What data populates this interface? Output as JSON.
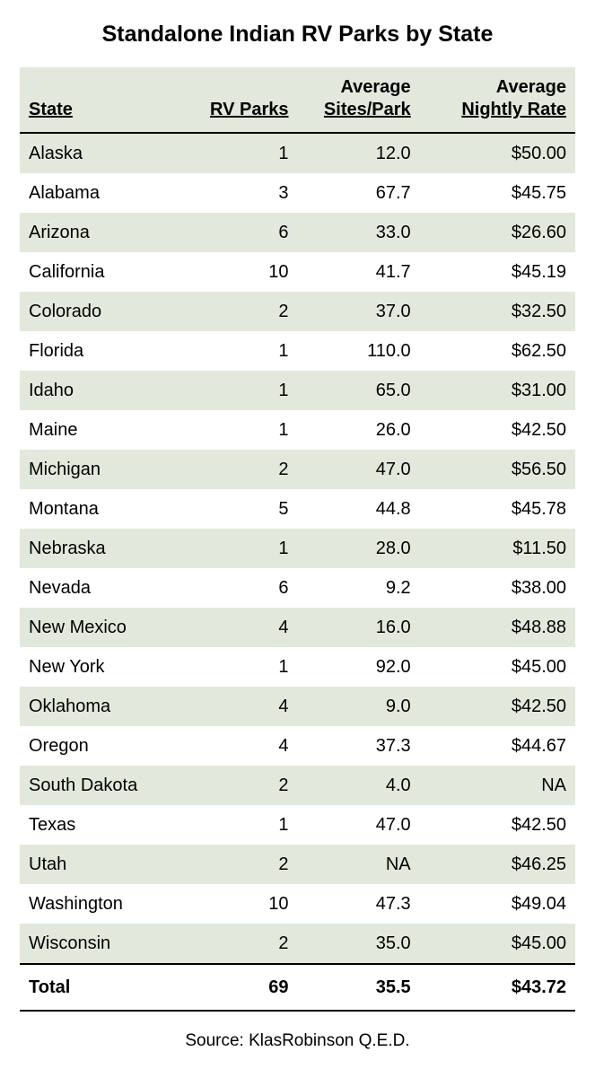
{
  "title": "Standalone Indian RV Parks by State",
  "columns": {
    "state": {
      "top": "",
      "bottom": "State"
    },
    "parks": {
      "top": "",
      "bottom": "RV Parks"
    },
    "sites": {
      "top": "Average",
      "bottom": "Sites/Park"
    },
    "rate": {
      "top": "Average",
      "bottom": "Nightly Rate"
    }
  },
  "column_widths_pct": [
    32,
    18,
    22,
    28
  ],
  "band_color": "#e2e9dc",
  "rows": [
    {
      "state": "Alaska",
      "parks": "1",
      "sites": "12.0",
      "rate": "$50.00"
    },
    {
      "state": "Alabama",
      "parks": "3",
      "sites": "67.7",
      "rate": "$45.75"
    },
    {
      "state": "Arizona",
      "parks": "6",
      "sites": "33.0",
      "rate": "$26.60"
    },
    {
      "state": "California",
      "parks": "10",
      "sites": "41.7",
      "rate": "$45.19"
    },
    {
      "state": "Colorado",
      "parks": "2",
      "sites": "37.0",
      "rate": "$32.50"
    },
    {
      "state": "Florida",
      "parks": "1",
      "sites": "110.0",
      "rate": "$62.50"
    },
    {
      "state": "Idaho",
      "parks": "1",
      "sites": "65.0",
      "rate": "$31.00"
    },
    {
      "state": "Maine",
      "parks": "1",
      "sites": "26.0",
      "rate": "$42.50"
    },
    {
      "state": "Michigan",
      "parks": "2",
      "sites": "47.0",
      "rate": "$56.50"
    },
    {
      "state": "Montana",
      "parks": "5",
      "sites": "44.8",
      "rate": "$45.78"
    },
    {
      "state": "Nebraska",
      "parks": "1",
      "sites": "28.0",
      "rate": "$11.50"
    },
    {
      "state": "Nevada",
      "parks": "6",
      "sites": "9.2",
      "rate": "$38.00"
    },
    {
      "state": "New Mexico",
      "parks": "4",
      "sites": "16.0",
      "rate": "$48.88"
    },
    {
      "state": "New York",
      "parks": "1",
      "sites": "92.0",
      "rate": "$45.00"
    },
    {
      "state": "Oklahoma",
      "parks": "4",
      "sites": "9.0",
      "rate": "$42.50"
    },
    {
      "state": "Oregon",
      "parks": "4",
      "sites": "37.3",
      "rate": "$44.67"
    },
    {
      "state": "South Dakota",
      "parks": "2",
      "sites": "4.0",
      "rate": "NA"
    },
    {
      "state": "Texas",
      "parks": "1",
      "sites": "47.0",
      "rate": "$42.50"
    },
    {
      "state": "Utah",
      "parks": "2",
      "sites": "NA",
      "rate": "$46.25"
    },
    {
      "state": "Washington",
      "parks": "10",
      "sites": "47.3",
      "rate": "$49.04"
    },
    {
      "state": "Wisconsin",
      "parks": "2",
      "sites": "35.0",
      "rate": "$45.00"
    }
  ],
  "total": {
    "label": "Total",
    "parks": "69",
    "sites": "35.5",
    "rate": "$43.72"
  },
  "source": "Source: KlasRobinson Q.E.D."
}
